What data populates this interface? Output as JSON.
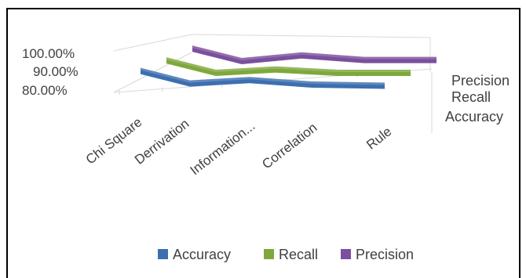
{
  "chart_data": {
    "type": "line",
    "style": "3d",
    "categories": [
      "Chi Square",
      "Derrivation",
      "Information...",
      "Correlation",
      "Rule"
    ],
    "series": [
      {
        "name": "Accuracy",
        "color": "#3d6fb0",
        "values": [
          91.5,
          86.0,
          87.5,
          85.5,
          85.0
        ]
      },
      {
        "name": "Recall",
        "color": "#7ea83c",
        "values": [
          91.0,
          85.5,
          87.0,
          85.5,
          85.5
        ]
      },
      {
        "name": "Precision",
        "color": "#7c4f9e",
        "values": [
          91.0,
          85.5,
          88.0,
          86.0,
          86.0
        ]
      }
    ],
    "y_ticks": [
      "100.00%",
      "90.00%",
      "80.00%"
    ],
    "ylim": [
      80,
      100
    ],
    "depth_labels": [
      "Precision",
      "Recall",
      "Accuracy"
    ],
    "legend": "bottom",
    "grid": false
  }
}
